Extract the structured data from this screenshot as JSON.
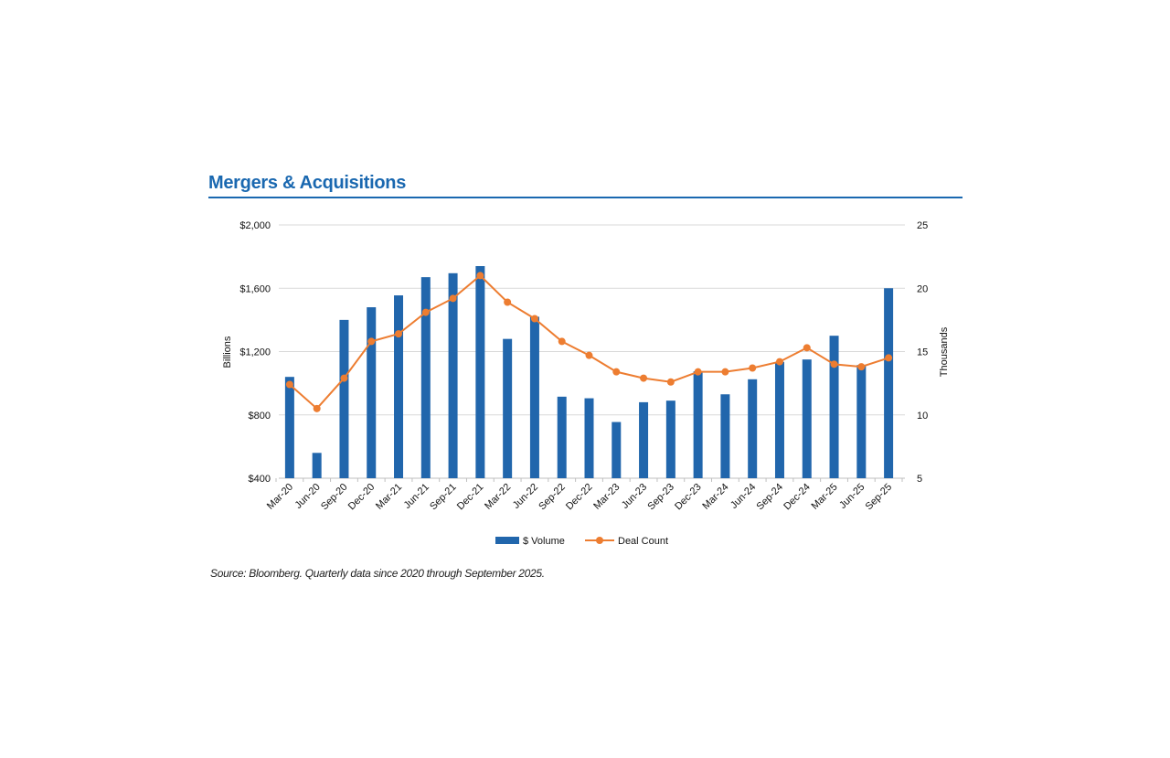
{
  "chart_data": {
    "type": "bar+line",
    "title": "Mergers & Acquisitions",
    "source": "Source: Bloomberg. Quarterly data since 2020 through September 2025.",
    "categories": [
      "Mar-20",
      "Jun-20",
      "Sep-20",
      "Dec-20",
      "Mar-21",
      "Jun-21",
      "Sep-21",
      "Dec-21",
      "Mar-22",
      "Jun-22",
      "Sep-22",
      "Dec-22",
      "Mar-23",
      "Jun-23",
      "Sep-23",
      "Dec-23",
      "Mar-24",
      "Jun-24",
      "Sep-24",
      "Dec-24",
      "Mar-25",
      "Jun-25",
      "Sep-25"
    ],
    "series": [
      {
        "name": "$ Volume",
        "type": "bar",
        "axis": "left",
        "color": "#2166ac",
        "values": [
          1040,
          560,
          1400,
          1480,
          1555,
          1670,
          1695,
          1740,
          1280,
          1420,
          915,
          905,
          755,
          880,
          890,
          1075,
          930,
          1025,
          1135,
          1150,
          1300,
          1115,
          1600
        ]
      },
      {
        "name": "Deal Count",
        "type": "line",
        "axis": "right",
        "color": "#ed7d31",
        "values": [
          12.4,
          10.5,
          12.9,
          15.8,
          16.4,
          18.1,
          19.2,
          21.0,
          18.9,
          17.6,
          15.8,
          14.7,
          13.4,
          12.9,
          12.6,
          13.4,
          13.4,
          13.7,
          14.2,
          15.3,
          14.0,
          13.8,
          14.5
        ]
      }
    ],
    "ylabel_left": "Billions",
    "ylabel_right": "Thousands",
    "ylim_left": [
      400,
      2000
    ],
    "ylim_right": [
      5,
      25
    ],
    "yticks_left": [
      "$400",
      "$800",
      "$1,200",
      "$1,600",
      "$2,000"
    ],
    "yticks_left_values": [
      400,
      800,
      1200,
      1600,
      2000
    ],
    "yticks_right": [
      "5",
      "10",
      "15",
      "20",
      "25"
    ],
    "yticks_right_values": [
      5,
      10,
      15,
      20,
      25
    ],
    "grid": true,
    "legend": "bottom"
  }
}
